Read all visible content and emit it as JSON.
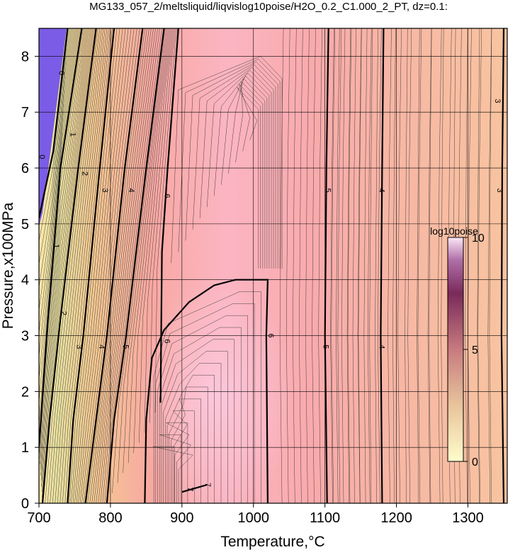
{
  "chart_data": {
    "type": "heatmap",
    "title": "MG133_057_2/meltsliquid/liqvislog10poise/H2O_0.2_C1.000_2_PT, dz=0.1:",
    "xlabel": "Temperature,°C",
    "ylabel": "Pressure,x100MPa",
    "xlim": [
      700,
      1355
    ],
    "ylim": [
      0,
      8.5
    ],
    "x_ticks": [
      "700",
      "800",
      "900",
      "1000",
      "1100",
      "1200",
      "1300"
    ],
    "y_ticks": [
      "0",
      "1",
      "2",
      "3",
      "4",
      "5",
      "6",
      "7",
      "8"
    ],
    "grid": true,
    "colorbar": {
      "label": "log10poise",
      "range": [
        0,
        10
      ],
      "ticks": [
        "0",
        "5",
        "10"
      ],
      "colors": [
        "#fffccc",
        "#c77b7f",
        "#6a1d4a",
        "#fce8f6"
      ]
    },
    "contour_interval": 0.1,
    "major_contours": [
      {
        "level": "0",
        "points": [
          [
            700,
            5.1
          ],
          [
            720,
            6.3
          ],
          [
            740,
            8.5
          ]
        ]
      },
      {
        "level": "1",
        "points": [
          [
            700,
            1.0
          ],
          [
            712,
            3.2
          ],
          [
            730,
            6.0
          ],
          [
            760,
            8.5
          ]
        ]
      },
      {
        "level": "2",
        "points": [
          [
            705,
            0.0
          ],
          [
            715,
            1.5
          ],
          [
            730,
            3.3
          ],
          [
            755,
            6.0
          ],
          [
            780,
            8.5
          ]
        ]
      },
      {
        "level": "3",
        "points": [
          [
            740,
            0.0
          ],
          [
            748,
            1.5
          ],
          [
            762,
            3.0
          ],
          [
            785,
            6.0
          ],
          [
            805,
            8.5
          ]
        ]
      },
      {
        "level": "4",
        "points": [
          [
            765,
            0.0
          ],
          [
            780,
            1.5
          ],
          [
            795,
            3.0
          ],
          [
            820,
            6.0
          ],
          [
            845,
            8.5
          ]
        ]
      },
      {
        "level": "5",
        "points": [
          [
            795,
            0.0
          ],
          [
            805,
            1.5
          ],
          [
            822,
            3.0
          ],
          [
            850,
            6.0
          ],
          [
            875,
            8.5
          ]
        ]
      },
      {
        "level": "6",
        "points": [
          [
            848,
            0.0
          ],
          [
            850,
            1.5
          ],
          [
            858,
            2.6
          ],
          [
            875,
            3.1
          ],
          [
            910,
            3.6
          ],
          [
            945,
            3.9
          ],
          [
            975,
            4.0
          ],
          [
            1020,
            4.0
          ],
          [
            1018,
            3.0
          ],
          [
            1020,
            0.0
          ]
        ]
      },
      {
        "level": "6",
        "points": [
          [
            870,
            1.8
          ],
          [
            872,
            4.5
          ],
          [
            880,
            6.0
          ],
          [
            895,
            8.5
          ]
        ]
      },
      {
        "level": "7",
        "points": [
          [
            900,
            0.2
          ],
          [
            935,
            0.33
          ]
        ]
      },
      {
        "level": "5",
        "points": [
          [
            1103,
            0.0
          ],
          [
            1100,
            3.0
          ],
          [
            1102,
            6.0
          ],
          [
            1105,
            8.5
          ]
        ]
      },
      {
        "level": "4",
        "points": [
          [
            1180,
            0.0
          ],
          [
            1178,
            3.0
          ],
          [
            1180,
            6.0
          ],
          [
            1182,
            8.5
          ]
        ]
      },
      {
        "level": "3",
        "points": [
          [
            1350,
            0.0
          ],
          [
            1347,
            3.0
          ],
          [
            1348,
            6.0
          ],
          [
            1350,
            8.5
          ]
        ]
      }
    ],
    "contour_labels": [
      {
        "text": "0",
        "x": 705,
        "y": 6.2
      },
      {
        "text": "0",
        "x": 732,
        "y": 7.7
      },
      {
        "text": "1",
        "x": 725,
        "y": 4.6
      },
      {
        "text": "1",
        "x": 748,
        "y": 6.6
      },
      {
        "text": "2",
        "x": 735,
        "y": 3.4
      },
      {
        "text": "2",
        "x": 765,
        "y": 5.9
      },
      {
        "text": "3",
        "x": 757,
        "y": 2.8
      },
      {
        "text": "3",
        "x": 793,
        "y": 5.6
      },
      {
        "text": "4",
        "x": 788,
        "y": 2.8
      },
      {
        "text": "4",
        "x": 830,
        "y": 5.6
      },
      {
        "text": "5",
        "x": 822,
        "y": 2.8
      },
      {
        "text": "6",
        "x": 880,
        "y": 5.5
      },
      {
        "text": "6",
        "x": 880,
        "y": 2.9
      },
      {
        "text": "6",
        "x": 1025,
        "y": 3.0
      },
      {
        "text": "7",
        "x": 912,
        "y": 0.25
      },
      {
        "text": "7",
        "x": 937,
        "y": 0.33
      },
      {
        "text": "5",
        "x": 1105,
        "y": 5.6
      },
      {
        "text": "5",
        "x": 1102,
        "y": 2.8
      },
      {
        "text": "4",
        "x": 1180,
        "y": 5.6
      },
      {
        "text": "4",
        "x": 1180,
        "y": 2.8
      },
      {
        "text": "3",
        "x": 1342,
        "y": 7.2
      },
      {
        "text": "3",
        "x": 1345,
        "y": 5.6
      }
    ]
  }
}
